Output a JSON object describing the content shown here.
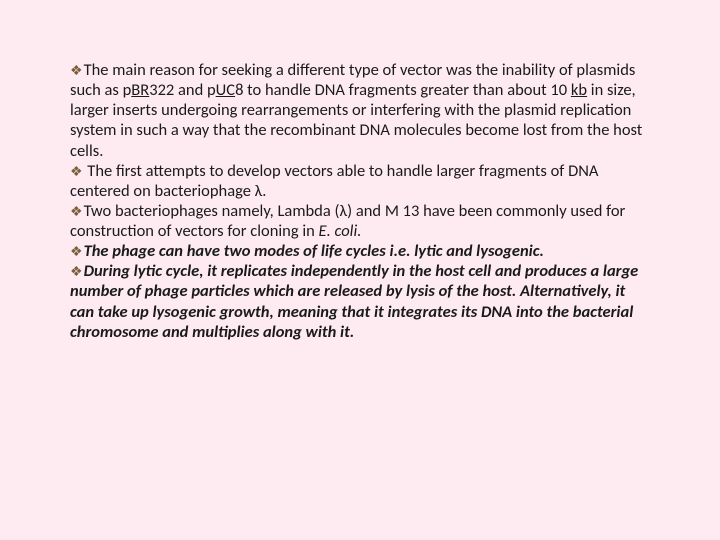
{
  "paragraphs": {
    "p1_pre": "The main reason for seeking a different type of vector was the inability of plasmids such as p",
    "p1_under1": "BR",
    "p1_mid1": "322 and p",
    "p1_under2": "UC",
    "p1_mid2": "8 to handle DNA fragments greater than about 10 ",
    "p1_under3": "kb",
    "p1_post": " in size, larger inserts undergoing rearrangements or interfering with the plasmid replication system in such a way that the recombinant DNA molecules become lost from the host cells.",
    "p2": " The first attempts to develop vectors able to handle larger fragments of DNA centered on bacteriophage λ.",
    "p3_pre": "Two bacteriophages namely, Lambda (λ) and M 13 have been commonly used for construction of vectors for cloning in ",
    "p3_italic": "E. coli.",
    "p4": "The phage can have two modes of life cycles i.e. lytic and lysogenic.",
    "p5": "During lytic cycle, it replicates independently in the host cell and produces a large number of phage particles which are released by lysis of the host. Alternatively, it can take up lysogenic growth, meaning that it integrates its DNA into the bacterial chromosome and multiplies along with it."
  },
  "style": {
    "background_color": "#fdebf1",
    "text_color": "#1a1a1a",
    "bullet_color": "#7a5c3a",
    "font_family": "Calibri, Arial, sans-serif",
    "font_size": 16.5,
    "line_height": 1.22,
    "bullet_glyph": "❖"
  }
}
